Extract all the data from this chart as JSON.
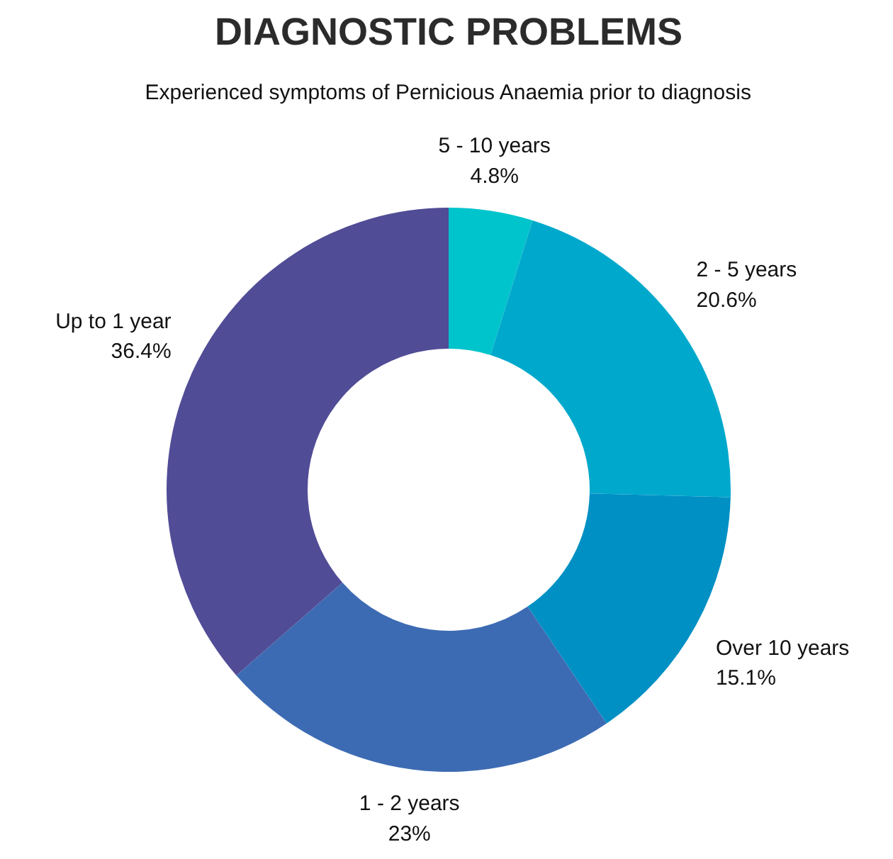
{
  "chart_data": {
    "type": "donut",
    "title": "DIAGNOSTIC PROBLEMS",
    "subtitle": "Experienced symptoms of Pernicious Anaemia prior to diagnosis",
    "categories": [
      "5 - 10 years",
      "2 - 5 years",
      "Over 10 years",
      "1 - 2 years",
      "Up to 1 year"
    ],
    "values": [
      4.8,
      20.6,
      15.1,
      23,
      36.4
    ],
    "colors": [
      "#00c4cc",
      "#00a9cc",
      "#0090c4",
      "#3d6bb3",
      "#514c96"
    ],
    "value_labels": [
      "4.8%",
      "20.6%",
      "15.1%",
      "23%",
      "36.4%"
    ]
  }
}
